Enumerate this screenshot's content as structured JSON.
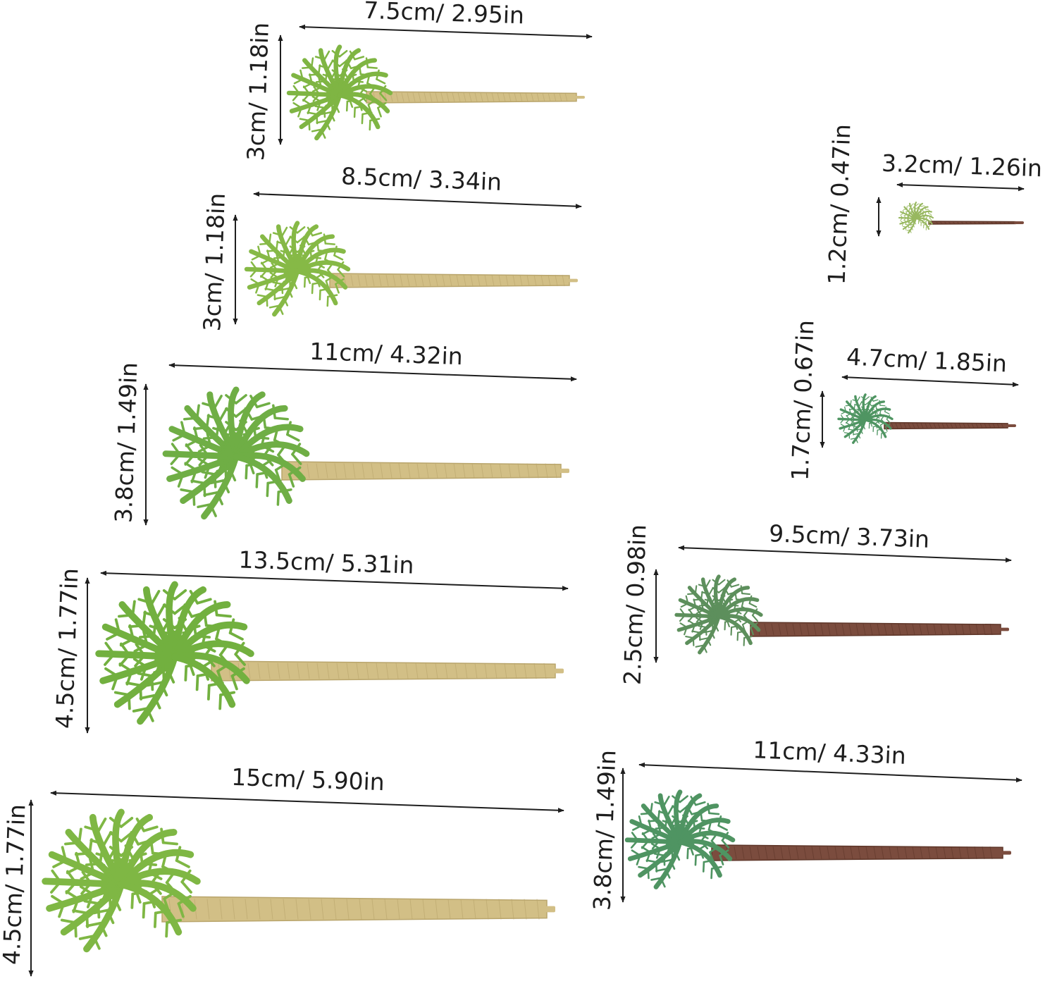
{
  "trees": [
    {
      "length": "7.5cm/ 2.95in",
      "height": "3cm/ 1.18in"
    },
    {
      "length": "8.5cm/ 3.34in",
      "height": "3cm/ 1.18in"
    },
    {
      "length": "11cm/ 4.32in",
      "height": "3.8cm/ 1.49in"
    },
    {
      "length": "13.5cm/ 5.31in",
      "height": "4.5cm/ 1.77in"
    },
    {
      "length": "15cm/ 5.90in",
      "height": "4.5cm/ 1.77in"
    },
    {
      "length": "3.2cm/ 1.26in",
      "height": "1.2cm/ 0.47in"
    },
    {
      "length": "4.7cm/ 1.85in",
      "height": "1.7cm/ 0.67in"
    },
    {
      "length": "9.5cm/ 3.73in",
      "height": "2.5cm/ 0.98in"
    },
    {
      "length": "11cm/ 4.33in",
      "height": "3.8cm/ 1.49in"
    }
  ]
}
